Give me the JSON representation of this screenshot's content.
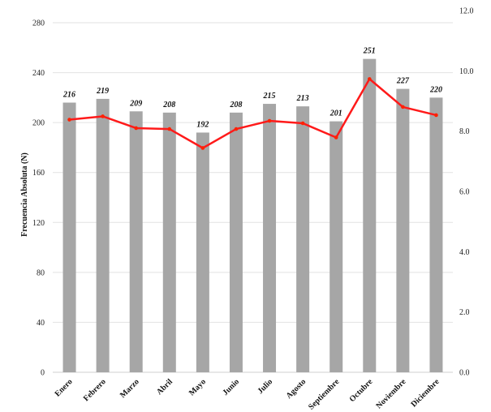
{
  "chart_data": {
    "type": "bar+line",
    "categories": [
      "Enero",
      "Febrero",
      "Marzo",
      "Abril",
      "Mayo",
      "Junio",
      "Julio",
      "Agosto",
      "Septiembre",
      "Octubre",
      "Noviembre",
      "Diciembre"
    ],
    "series": [
      {
        "type": "bar",
        "axis": "left",
        "values": [
          216,
          219,
          209,
          208,
          192,
          208,
          215,
          213,
          201,
          251,
          227,
          220
        ],
        "color": "#a6a6a6"
      },
      {
        "type": "line",
        "axis": "right",
        "values": [
          8.38,
          8.49,
          8.1,
          8.07,
          7.44,
          8.07,
          8.34,
          8.26,
          7.79,
          9.73,
          8.8,
          8.53
        ],
        "color": "#ff1a1a",
        "marker_color": "#ff2200"
      }
    ],
    "ylabel": "Frecuencia Absoluta (N)",
    "ylim": [
      0,
      280
    ],
    "yticks": [
      "0",
      "40",
      "80",
      "120",
      "160",
      "200",
      "240",
      "280"
    ],
    "y2lim": [
      0,
      12
    ],
    "y2ticks": [
      "0.0",
      "2.0",
      "4.0",
      "6.0",
      "8.0",
      "10.0",
      "12.0"
    ],
    "grid": true,
    "data_labels": [
      "216",
      "219",
      "209",
      "208",
      "192",
      "208",
      "215",
      "213",
      "201",
      "251",
      "227",
      "220"
    ]
  }
}
